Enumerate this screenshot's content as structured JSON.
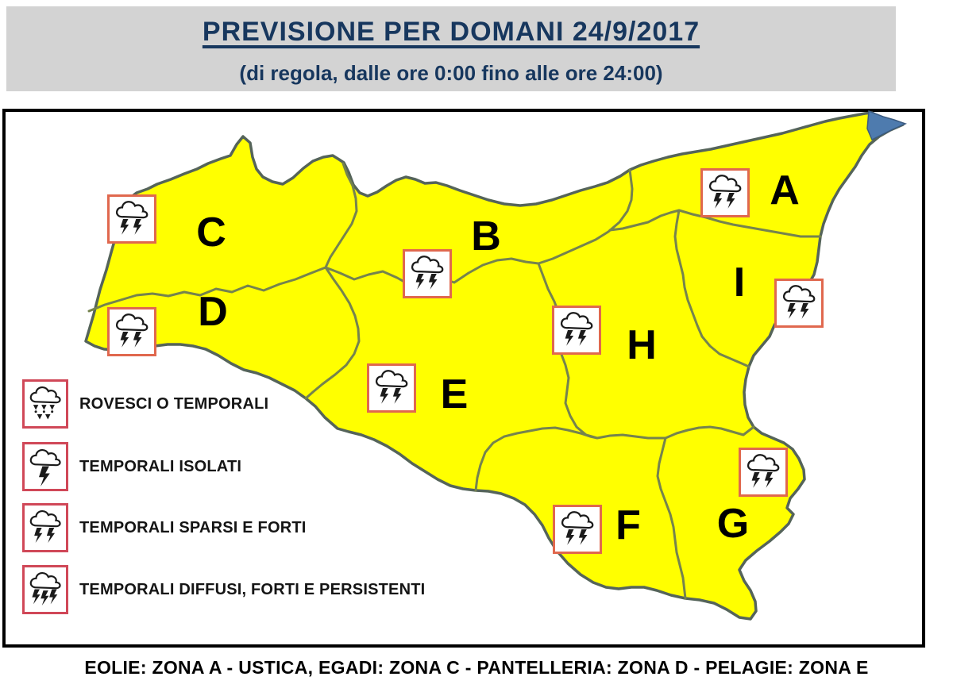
{
  "header": {
    "title": "PREVISIONE PER DOMANI 24/9/2017",
    "subtitle": "(di regola, dalle ore 0:00 fino alle ore 24:00)",
    "bg_color": "#D3D3D3",
    "text_color": "#17375E"
  },
  "map": {
    "island_fill": "#FFFF00",
    "coast_color": "#55645A",
    "zone_border_color": "#75834E",
    "ne_tip_color": "#4E7BAE",
    "icon_box_border_color": "#E0684E",
    "zones": [
      {
        "label": "A",
        "icon": "temporali-sparsi-e-forti"
      },
      {
        "label": "B",
        "icon": "temporali-sparsi-e-forti"
      },
      {
        "label": "C",
        "icon": "temporali-sparsi-e-forti"
      },
      {
        "label": "D",
        "icon": "temporali-sparsi-e-forti"
      },
      {
        "label": "E",
        "icon": "temporali-sparsi-e-forti"
      },
      {
        "label": "F",
        "icon": "temporali-sparsi-e-forti"
      },
      {
        "label": "G",
        "icon": "temporali-sparsi-e-forti"
      },
      {
        "label": "H",
        "icon": "temporali-sparsi-e-forti"
      },
      {
        "label": "I",
        "icon": "temporali-sparsi-e-forti"
      }
    ]
  },
  "legend": {
    "border_color": "#D04858",
    "items": [
      {
        "icon": "rovesci-o-temporali",
        "label": "ROVESCI O TEMPORALI"
      },
      {
        "icon": "temporali-isolati",
        "label": "TEMPORALI ISOLATI"
      },
      {
        "icon": "temporali-sparsi-e-forti",
        "label": "TEMPORALI SPARSI E FORTI"
      },
      {
        "icon": "temporali-diffusi-forti-e-persistenti",
        "label": "TEMPORALI DIFFUSI, FORTI E PERSISTENTI"
      }
    ]
  },
  "footer": {
    "note": "EOLIE: ZONA A - USTICA, EGADI: ZONA C - PANTELLERIA: ZONA D - PELAGIE: ZONA E"
  }
}
